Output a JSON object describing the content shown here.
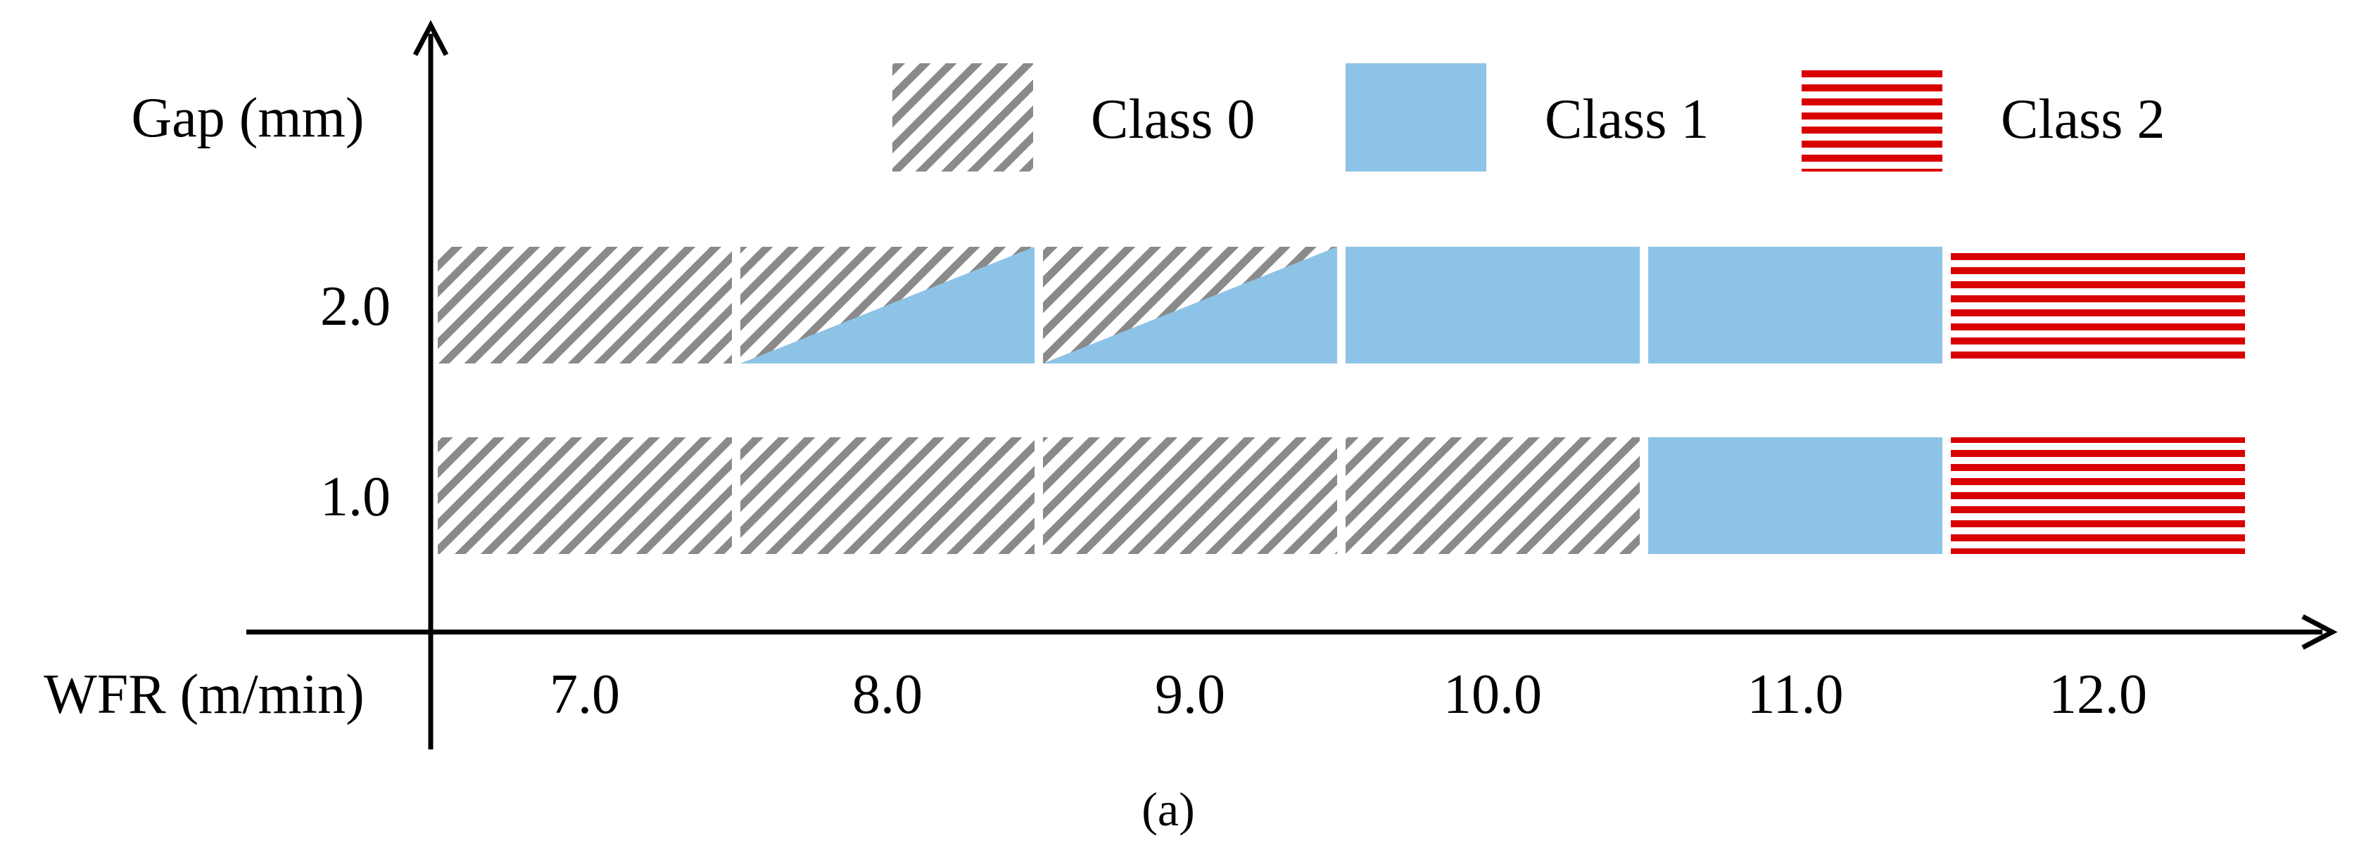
{
  "chart_data": {
    "type": "heatmap",
    "ylabel": "Gap (mm)",
    "xlabel": "WFR (m/min)",
    "caption": "(a)",
    "x": [
      "7.0",
      "8.0",
      "9.0",
      "10.0",
      "11.0",
      "12.0"
    ],
    "y": [
      "2.0",
      "1.0"
    ],
    "legend": [
      {
        "label": "Class 0",
        "pattern": "diagonal-hatch",
        "color": "#8a8a8a"
      },
      {
        "label": "Class 1",
        "pattern": "solid",
        "color": "#8dc3e6"
      },
      {
        "label": "Class 2",
        "pattern": "horizontal-stripes",
        "color": "#d90000"
      }
    ],
    "legend_position": "top-right",
    "cells": [
      {
        "gap": "2.0",
        "wfr": "7.0",
        "class": 0
      },
      {
        "gap": "2.0",
        "wfr": "8.0",
        "class": "0/1"
      },
      {
        "gap": "2.0",
        "wfr": "9.0",
        "class": "0/1"
      },
      {
        "gap": "2.0",
        "wfr": "10.0",
        "class": 1
      },
      {
        "gap": "2.0",
        "wfr": "11.0",
        "class": 1
      },
      {
        "gap": "2.0",
        "wfr": "12.0",
        "class": 2
      },
      {
        "gap": "1.0",
        "wfr": "7.0",
        "class": 0
      },
      {
        "gap": "1.0",
        "wfr": "8.0",
        "class": 0
      },
      {
        "gap": "1.0",
        "wfr": "9.0",
        "class": 0
      },
      {
        "gap": "1.0",
        "wfr": "10.0",
        "class": 0
      },
      {
        "gap": "1.0",
        "wfr": "11.0",
        "class": 1
      },
      {
        "gap": "1.0",
        "wfr": "12.0",
        "class": 2
      }
    ],
    "colors": {
      "hatch": "#8a8a8a",
      "class1": "#8dc3e6",
      "class2": "#d90000",
      "axis": "#000000"
    }
  }
}
